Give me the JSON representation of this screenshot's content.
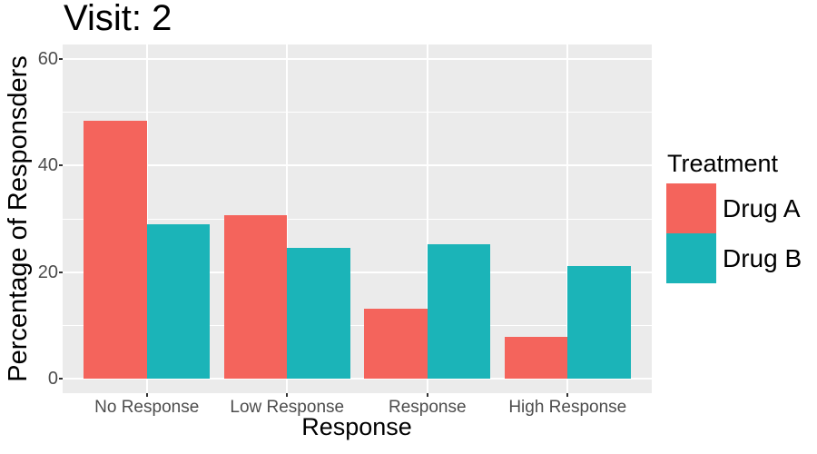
{
  "title": "Visit: 2",
  "axes": {
    "x_title": "Response",
    "y_title": "Percentage of Responsders",
    "y_tick_labels": [
      "0",
      "20",
      "40",
      "60"
    ],
    "x_tick_labels": [
      "No Response",
      "Low Response",
      "Response",
      "High Response"
    ]
  },
  "legend": {
    "title": "Treatment",
    "items": [
      {
        "label": "Drug A",
        "color": "#F4645C"
      },
      {
        "label": "Drug B",
        "color": "#1BB4B8"
      }
    ]
  },
  "chart_data": {
    "type": "bar",
    "bar_layout": "dodge",
    "title": "Visit: 2",
    "xlabel": "Response",
    "ylabel": "Percentage of Responsders",
    "categories": [
      "No Response",
      "Low Response",
      "Response",
      "High Response"
    ],
    "series": [
      {
        "name": "Drug A",
        "color": "#F4645C",
        "values": [
          48.4,
          30.6,
          13.1,
          7.9
        ]
      },
      {
        "name": "Drug B",
        "color": "#1BB4B8",
        "values": [
          29.0,
          24.6,
          25.3,
          21.1
        ]
      }
    ],
    "y_ticks": [
      0,
      20,
      40,
      60
    ],
    "y_minor_ticks": [
      10,
      30,
      50
    ],
    "ylim": [
      -2.7,
      62.7
    ],
    "grid": true,
    "legend_title": "Treatment",
    "legend_position": "right",
    "panel_background": "#EBEBEB",
    "grid_color": "#FFFFFF",
    "axis_text_color": "#4D4D4D",
    "tick_color": "#333333"
  }
}
